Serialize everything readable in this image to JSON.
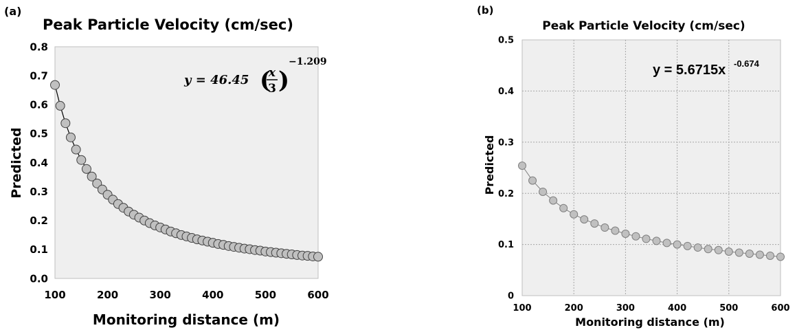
{
  "chart_data": [
    {
      "panel_label": "(a)",
      "type": "line",
      "title": "Peak Particle Velocity (cm/sec)",
      "xlabel": "Monitoring distance (m)",
      "ylabel": "Predicted",
      "xlim": [
        100,
        600
      ],
      "ylim": [
        0,
        0.8
      ],
      "xticks": [
        "100",
        "200",
        "300",
        "400",
        "500",
        "600"
      ],
      "yticks": [
        "0.0",
        "0.1",
        "0.2",
        "0.3",
        "0.4",
        "0.5",
        "0.6",
        "0.7",
        "0.8"
      ],
      "grid": false,
      "background": "#efefef",
      "marker_color": "#c0c0c0",
      "line_color": "#000000",
      "equation": {
        "lhs": "y = 46.45",
        "frac_num": "x",
        "frac_den": "3",
        "exponent": "−1.209"
      },
      "series": [
        {
          "x": [
            100,
            110,
            120,
            130,
            140,
            150,
            160,
            170,
            180,
            190,
            200,
            210,
            220,
            230,
            240,
            250,
            260,
            270,
            280,
            290,
            300,
            310,
            320,
            330,
            340,
            350,
            360,
            370,
            380,
            390,
            400,
            410,
            420,
            430,
            440,
            450,
            460,
            470,
            480,
            490,
            500,
            510,
            520,
            530,
            540,
            550,
            560,
            570,
            580,
            590,
            600
          ],
          "y": [
            0.668,
            0.596,
            0.536,
            0.487,
            0.445,
            0.409,
            0.378,
            0.352,
            0.328,
            0.307,
            0.289,
            0.272,
            0.257,
            0.244,
            0.231,
            0.22,
            0.21,
            0.2,
            0.191,
            0.183,
            0.176,
            0.169,
            0.162,
            0.156,
            0.15,
            0.145,
            0.14,
            0.135,
            0.131,
            0.127,
            0.123,
            0.119,
            0.116,
            0.112,
            0.109,
            0.106,
            0.103,
            0.101,
            0.098,
            0.096,
            0.093,
            0.091,
            0.089,
            0.087,
            0.085,
            0.083,
            0.081,
            0.079,
            0.078,
            0.076,
            0.075
          ]
        }
      ]
    },
    {
      "panel_label": "(b)",
      "type": "line",
      "title": "Peak Particle Velocity (cm/sec)",
      "xlabel": "Monitoring distance (m)",
      "ylabel": "Predicted",
      "xlim": [
        100,
        600
      ],
      "ylim": [
        0,
        0.5
      ],
      "xticks": [
        "100",
        "200",
        "300",
        "400",
        "500",
        "600"
      ],
      "yticks": [
        "0",
        "0.1",
        "0.2",
        "0.3",
        "0.4",
        "0.5"
      ],
      "grid": true,
      "background": "#efefef",
      "marker_color": "#c0c0c0",
      "line_color": "#808080",
      "equation": {
        "lhs": "y = 5.6715x",
        "exponent": "-0.674"
      },
      "series": [
        {
          "x": [
            100,
            120,
            140,
            160,
            180,
            200,
            220,
            240,
            260,
            280,
            300,
            320,
            340,
            360,
            380,
            400,
            420,
            440,
            460,
            480,
            500,
            520,
            540,
            560,
            580,
            600
          ],
          "y": [
            0.254,
            0.225,
            0.203,
            0.186,
            0.171,
            0.159,
            0.149,
            0.141,
            0.133,
            0.127,
            0.121,
            0.116,
            0.111,
            0.107,
            0.103,
            0.1,
            0.097,
            0.094,
            0.091,
            0.089,
            0.086,
            0.084,
            0.082,
            0.08,
            0.078,
            0.076
          ]
        }
      ]
    }
  ]
}
